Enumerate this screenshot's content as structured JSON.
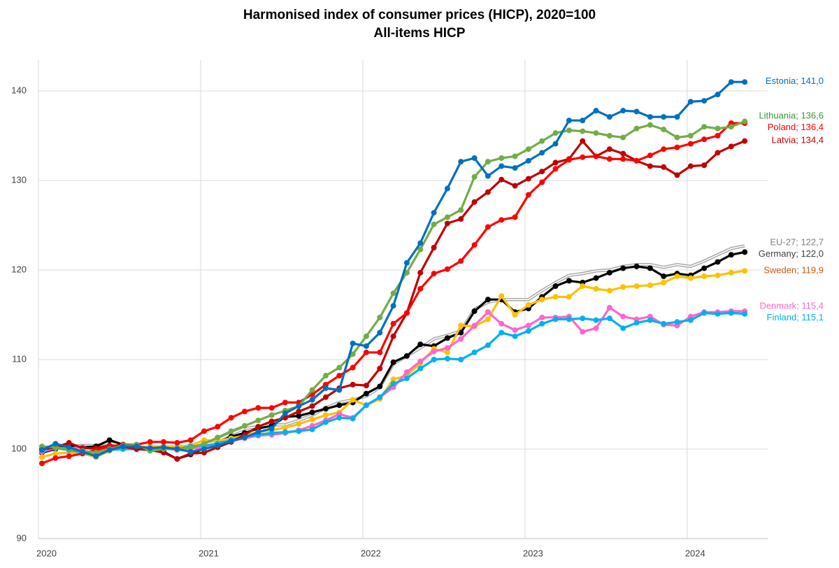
{
  "chart_data": {
    "type": "line",
    "title": "Harmonised index of consumer prices (HICP), 2020=100",
    "subtitle": "All-items HICP",
    "categories": [
      "2020",
      null,
      null,
      null,
      null,
      null,
      null,
      null,
      null,
      null,
      null,
      null,
      "2021",
      null,
      null,
      null,
      null,
      null,
      null,
      null,
      null,
      null,
      null,
      null,
      "2022",
      null,
      null,
      null,
      null,
      null,
      null,
      null,
      null,
      null,
      null,
      null,
      "2023",
      null,
      null,
      null,
      null,
      null,
      null,
      null,
      null,
      null,
      null,
      null,
      "2024",
      null,
      null,
      null,
      null
    ],
    "ylim": [
      90,
      145
    ],
    "yticks": [
      90,
      100,
      110,
      120,
      130,
      140
    ],
    "grid": true,
    "label_separator": "; ",
    "series": [
      {
        "name": "EU-27",
        "color": "#a6a6a6",
        "label_color": "#7f7f7f",
        "markers": false,
        "values": [
          99.9,
          100.1,
          100.3,
          100.4,
          100.4,
          100.7,
          100.4,
          100.1,
          100.1,
          100.3,
          100.1,
          100.4,
          100.8,
          101.0,
          101.7,
          102.3,
          102.5,
          102.7,
          102.7,
          103.2,
          103.8,
          104.6,
          105.2,
          105.5,
          105.9,
          106.9,
          109.5,
          110.4,
          111.3,
          112.3,
          112.7,
          113.2,
          115.6,
          116.4,
          116.7,
          116.7,
          116.7,
          117.7,
          118.6,
          119.4,
          119.6,
          119.9,
          120.0,
          120.4,
          120.6,
          120.6,
          120.3,
          120.6,
          120.4,
          121.0,
          121.7,
          122.4,
          122.7
        ],
        "value_labels": [
          null,
          null,
          null,
          null,
          null,
          null,
          null,
          null,
          null,
          null,
          null,
          null,
          null,
          null,
          null,
          null,
          null,
          null,
          null,
          null,
          null,
          null,
          null,
          null,
          null,
          null,
          null,
          null,
          null,
          null,
          null,
          null,
          null,
          null,
          null,
          null,
          null,
          null,
          null,
          null,
          null,
          null,
          null,
          null,
          null,
          null,
          null,
          null,
          null,
          null,
          null,
          null,
          "122,7"
        ]
      },
      {
        "name": "Germany",
        "color": "#000000",
        "label_color": "#404040",
        "markers": true,
        "values": [
          99.6,
          100.0,
          100.4,
          100.2,
          100.3,
          101.0,
          100.5,
          100.2,
          99.9,
          99.7,
          98.9,
          99.4,
          100.1,
          100.7,
          101.4,
          101.8,
          102.3,
          102.6,
          103.6,
          103.7,
          104.1,
          104.5,
          104.9,
          105.2,
          106.2,
          107.0,
          109.7,
          110.4,
          111.7,
          111.5,
          112.4,
          113.0,
          115.4,
          116.7,
          116.7,
          115.3,
          115.7,
          117.0,
          118.2,
          118.8,
          118.6,
          119.1,
          119.7,
          120.2,
          120.4,
          120.2,
          119.3,
          119.6,
          119.4,
          120.2,
          120.9,
          121.7,
          122.0
        ],
        "value_labels": [
          null,
          null,
          null,
          null,
          null,
          null,
          null,
          null,
          null,
          null,
          null,
          null,
          null,
          null,
          null,
          null,
          null,
          null,
          null,
          null,
          null,
          null,
          null,
          null,
          null,
          null,
          null,
          null,
          null,
          null,
          null,
          null,
          null,
          null,
          null,
          null,
          null,
          null,
          null,
          null,
          null,
          null,
          null,
          null,
          null,
          null,
          null,
          null,
          null,
          null,
          null,
          null,
          "122,0"
        ]
      },
      {
        "name": "Sweden",
        "color": "#ffc000",
        "label_color": "#c55a11",
        "markers": true,
        "values": [
          99.1,
          99.5,
          99.6,
          99.5,
          99.1,
          99.8,
          100.4,
          100.2,
          100.3,
          100.3,
          100.3,
          100.4,
          101.0,
          100.9,
          101.2,
          101.5,
          101.9,
          102.1,
          102.4,
          102.8,
          103.3,
          103.8,
          104.1,
          105.5,
          104.9,
          105.6,
          107.8,
          108.2,
          109.6,
          111.2,
          110.8,
          113.8,
          113.7,
          114.5,
          117.1,
          115.0,
          116.1,
          116.7,
          117.0,
          117.0,
          118.2,
          117.9,
          117.7,
          118.1,
          118.2,
          118.3,
          118.6,
          119.3,
          119.1,
          119.3,
          119.4,
          119.7,
          119.9
        ],
        "value_labels": [
          null,
          null,
          null,
          null,
          null,
          null,
          null,
          null,
          null,
          null,
          null,
          null,
          null,
          null,
          null,
          null,
          null,
          null,
          null,
          null,
          null,
          null,
          null,
          null,
          null,
          null,
          null,
          null,
          null,
          null,
          null,
          null,
          null,
          null,
          null,
          null,
          null,
          null,
          null,
          null,
          null,
          null,
          null,
          null,
          null,
          null,
          null,
          null,
          null,
          null,
          null,
          null,
          "119,9"
        ]
      },
      {
        "name": "Denmark",
        "color": "#ff66cc",
        "label_color": "#ff66cc",
        "markers": true,
        "values": [
          99.7,
          100.1,
          100.1,
          100.2,
          99.9,
          100.1,
          100.3,
          100.0,
          100.1,
          100.1,
          99.9,
          100.1,
          100.1,
          100.5,
          100.9,
          101.2,
          101.5,
          101.6,
          101.8,
          102.1,
          102.6,
          103.2,
          103.9,
          103.5,
          104.9,
          105.8,
          106.9,
          108.6,
          109.8,
          110.9,
          111.3,
          112.3,
          113.8,
          115.3,
          114.0,
          113.3,
          113.8,
          114.7,
          114.7,
          114.8,
          113.1,
          113.5,
          115.8,
          114.8,
          114.5,
          114.8,
          113.9,
          113.8,
          114.8,
          115.3,
          115.3,
          115.4,
          115.4
        ],
        "value_labels": [
          null,
          null,
          null,
          null,
          null,
          null,
          null,
          null,
          null,
          null,
          null,
          null,
          null,
          null,
          null,
          null,
          null,
          null,
          null,
          null,
          null,
          null,
          null,
          null,
          null,
          null,
          null,
          null,
          null,
          null,
          null,
          null,
          null,
          null,
          null,
          null,
          null,
          null,
          null,
          null,
          null,
          null,
          null,
          null,
          null,
          null,
          null,
          null,
          null,
          null,
          null,
          null,
          "115,4"
        ]
      },
      {
        "name": "Finland",
        "color": "#00b0f0",
        "label_color": "#00b0f0",
        "markers": true,
        "values": [
          99.9,
          100.1,
          99.9,
          99.6,
          99.3,
          99.9,
          100.0,
          100.0,
          100.0,
          100.0,
          100.0,
          100.3,
          100.4,
          100.6,
          101.0,
          101.4,
          101.6,
          101.8,
          101.9,
          102.0,
          102.2,
          103.0,
          103.5,
          103.4,
          104.9,
          105.8,
          107.3,
          107.9,
          109.0,
          110.0,
          110.1,
          110.0,
          110.8,
          111.6,
          113.0,
          112.6,
          113.2,
          114.0,
          114.5,
          114.5,
          114.6,
          114.4,
          114.6,
          113.5,
          114.1,
          114.4,
          114.0,
          114.2,
          114.4,
          115.2,
          115.1,
          115.2,
          115.1
        ],
        "value_labels": [
          null,
          null,
          null,
          null,
          null,
          null,
          null,
          null,
          null,
          null,
          null,
          null,
          null,
          null,
          null,
          null,
          null,
          null,
          null,
          null,
          null,
          null,
          null,
          null,
          null,
          null,
          null,
          null,
          null,
          null,
          null,
          null,
          null,
          null,
          null,
          null,
          null,
          null,
          null,
          null,
          null,
          null,
          null,
          null,
          null,
          null,
          null,
          null,
          null,
          null,
          null,
          null,
          "115,1"
        ]
      },
      {
        "name": "Latvia",
        "color": "#c00000",
        "label_color": "#c00000",
        "markers": true,
        "values": [
          100.0,
          100.2,
          100.7,
          100.1,
          100.1,
          100.4,
          100.3,
          100.0,
          99.9,
          99.6,
          98.9,
          99.5,
          99.6,
          100.2,
          100.8,
          101.6,
          102.5,
          103.1,
          103.5,
          104.2,
          104.8,
          105.8,
          106.8,
          107.2,
          107.1,
          109.0,
          112.6,
          115.2,
          119.7,
          122.5,
          125.2,
          125.7,
          127.6,
          128.7,
          130.1,
          129.4,
          130.2,
          131.0,
          132.0,
          132.4,
          134.4,
          132.7,
          133.5,
          133.0,
          132.2,
          131.6,
          131.5,
          130.6,
          131.6,
          131.7,
          133.1,
          133.8,
          134.4
        ],
        "value_labels": [
          null,
          null,
          null,
          null,
          null,
          null,
          null,
          null,
          null,
          null,
          null,
          null,
          null,
          null,
          null,
          null,
          null,
          null,
          null,
          null,
          null,
          null,
          null,
          null,
          null,
          null,
          null,
          null,
          null,
          null,
          null,
          null,
          null,
          null,
          null,
          null,
          null,
          null,
          null,
          null,
          null,
          null,
          null,
          null,
          null,
          null,
          null,
          null,
          null,
          null,
          null,
          null,
          "134,4"
        ]
      },
      {
        "name": "Poland",
        "color": "#ff0000",
        "label_color": "#ff0000",
        "markers": true,
        "values": [
          98.4,
          99.0,
          99.2,
          99.5,
          99.9,
          100.3,
          100.5,
          100.5,
          100.8,
          100.8,
          100.7,
          101.0,
          102.0,
          102.5,
          103.5,
          104.2,
          104.6,
          104.6,
          105.2,
          105.2,
          106.1,
          107.2,
          108.2,
          109.1,
          110.8,
          110.8,
          114.0,
          115.2,
          117.9,
          119.6,
          120.1,
          121.0,
          122.8,
          124.8,
          125.6,
          125.9,
          128.4,
          129.8,
          131.3,
          132.3,
          132.6,
          132.7,
          132.4,
          132.4,
          132.2,
          132.8,
          133.5,
          133.7,
          134.1,
          134.6,
          135.0,
          136.4,
          136.4
        ],
        "value_labels": [
          null,
          null,
          null,
          null,
          null,
          null,
          null,
          null,
          null,
          null,
          null,
          null,
          null,
          null,
          null,
          null,
          null,
          null,
          null,
          null,
          null,
          null,
          null,
          null,
          null,
          null,
          null,
          null,
          null,
          null,
          null,
          null,
          null,
          null,
          null,
          null,
          null,
          null,
          null,
          null,
          null,
          null,
          null,
          null,
          null,
          null,
          null,
          null,
          null,
          null,
          null,
          null,
          "136,4"
        ]
      },
      {
        "name": "Lithuania",
        "color": "#70ad47",
        "label_color": "#339933",
        "markers": true,
        "values": [
          100.3,
          100.2,
          100.0,
          99.8,
          99.6,
          100.0,
          100.4,
          100.5,
          99.8,
          100.0,
          100.1,
          100.1,
          100.6,
          101.3,
          102.0,
          102.6,
          103.2,
          103.8,
          104.3,
          104.8,
          106.6,
          108.2,
          109.1,
          110.6,
          112.6,
          114.7,
          117.4,
          119.7,
          122.3,
          125.1,
          125.9,
          126.7,
          130.4,
          132.1,
          132.5,
          132.7,
          133.5,
          134.4,
          135.3,
          135.6,
          135.5,
          135.3,
          135.0,
          134.8,
          135.8,
          136.2,
          135.7,
          134.8,
          135.0,
          136.0,
          135.8,
          136.0,
          136.6
        ],
        "value_labels": [
          null,
          null,
          null,
          null,
          null,
          null,
          null,
          null,
          null,
          null,
          null,
          null,
          null,
          null,
          null,
          null,
          null,
          null,
          null,
          null,
          null,
          null,
          null,
          null,
          null,
          null,
          null,
          null,
          null,
          null,
          null,
          null,
          null,
          null,
          null,
          null,
          null,
          null,
          null,
          null,
          null,
          null,
          null,
          null,
          null,
          null,
          null,
          null,
          null,
          null,
          null,
          null,
          "136,6"
        ]
      },
      {
        "name": "Estonia",
        "color": "#0070c0",
        "label_color": "#0070c0",
        "markers": true,
        "values": [
          99.9,
          100.6,
          100.2,
          99.7,
          99.2,
          99.9,
          100.3,
          100.3,
          100.1,
          100.2,
          100.0,
          99.7,
          100.0,
          100.4,
          100.9,
          101.3,
          101.9,
          102.3,
          104.0,
          104.8,
          105.5,
          106.8,
          106.6,
          111.8,
          111.5,
          113.0,
          116.0,
          120.8,
          123.0,
          126.4,
          129.1,
          132.1,
          132.5,
          130.5,
          131.6,
          131.4,
          132.2,
          133.1,
          134.1,
          136.7,
          136.7,
          137.8,
          137.1,
          137.8,
          137.7,
          137.1,
          137.1,
          137.1,
          138.8,
          138.9,
          139.6,
          141.0,
          141.0
        ],
        "value_labels": [
          null,
          null,
          null,
          null,
          null,
          null,
          null,
          null,
          null,
          null,
          null,
          null,
          null,
          null,
          null,
          null,
          null,
          null,
          null,
          null,
          null,
          null,
          null,
          null,
          null,
          null,
          null,
          null,
          null,
          null,
          null,
          null,
          null,
          null,
          null,
          null,
          null,
          null,
          null,
          null,
          null,
          null,
          null,
          null,
          null,
          null,
          null,
          null,
          null,
          null,
          null,
          null,
          "141,0"
        ]
      }
    ]
  }
}
